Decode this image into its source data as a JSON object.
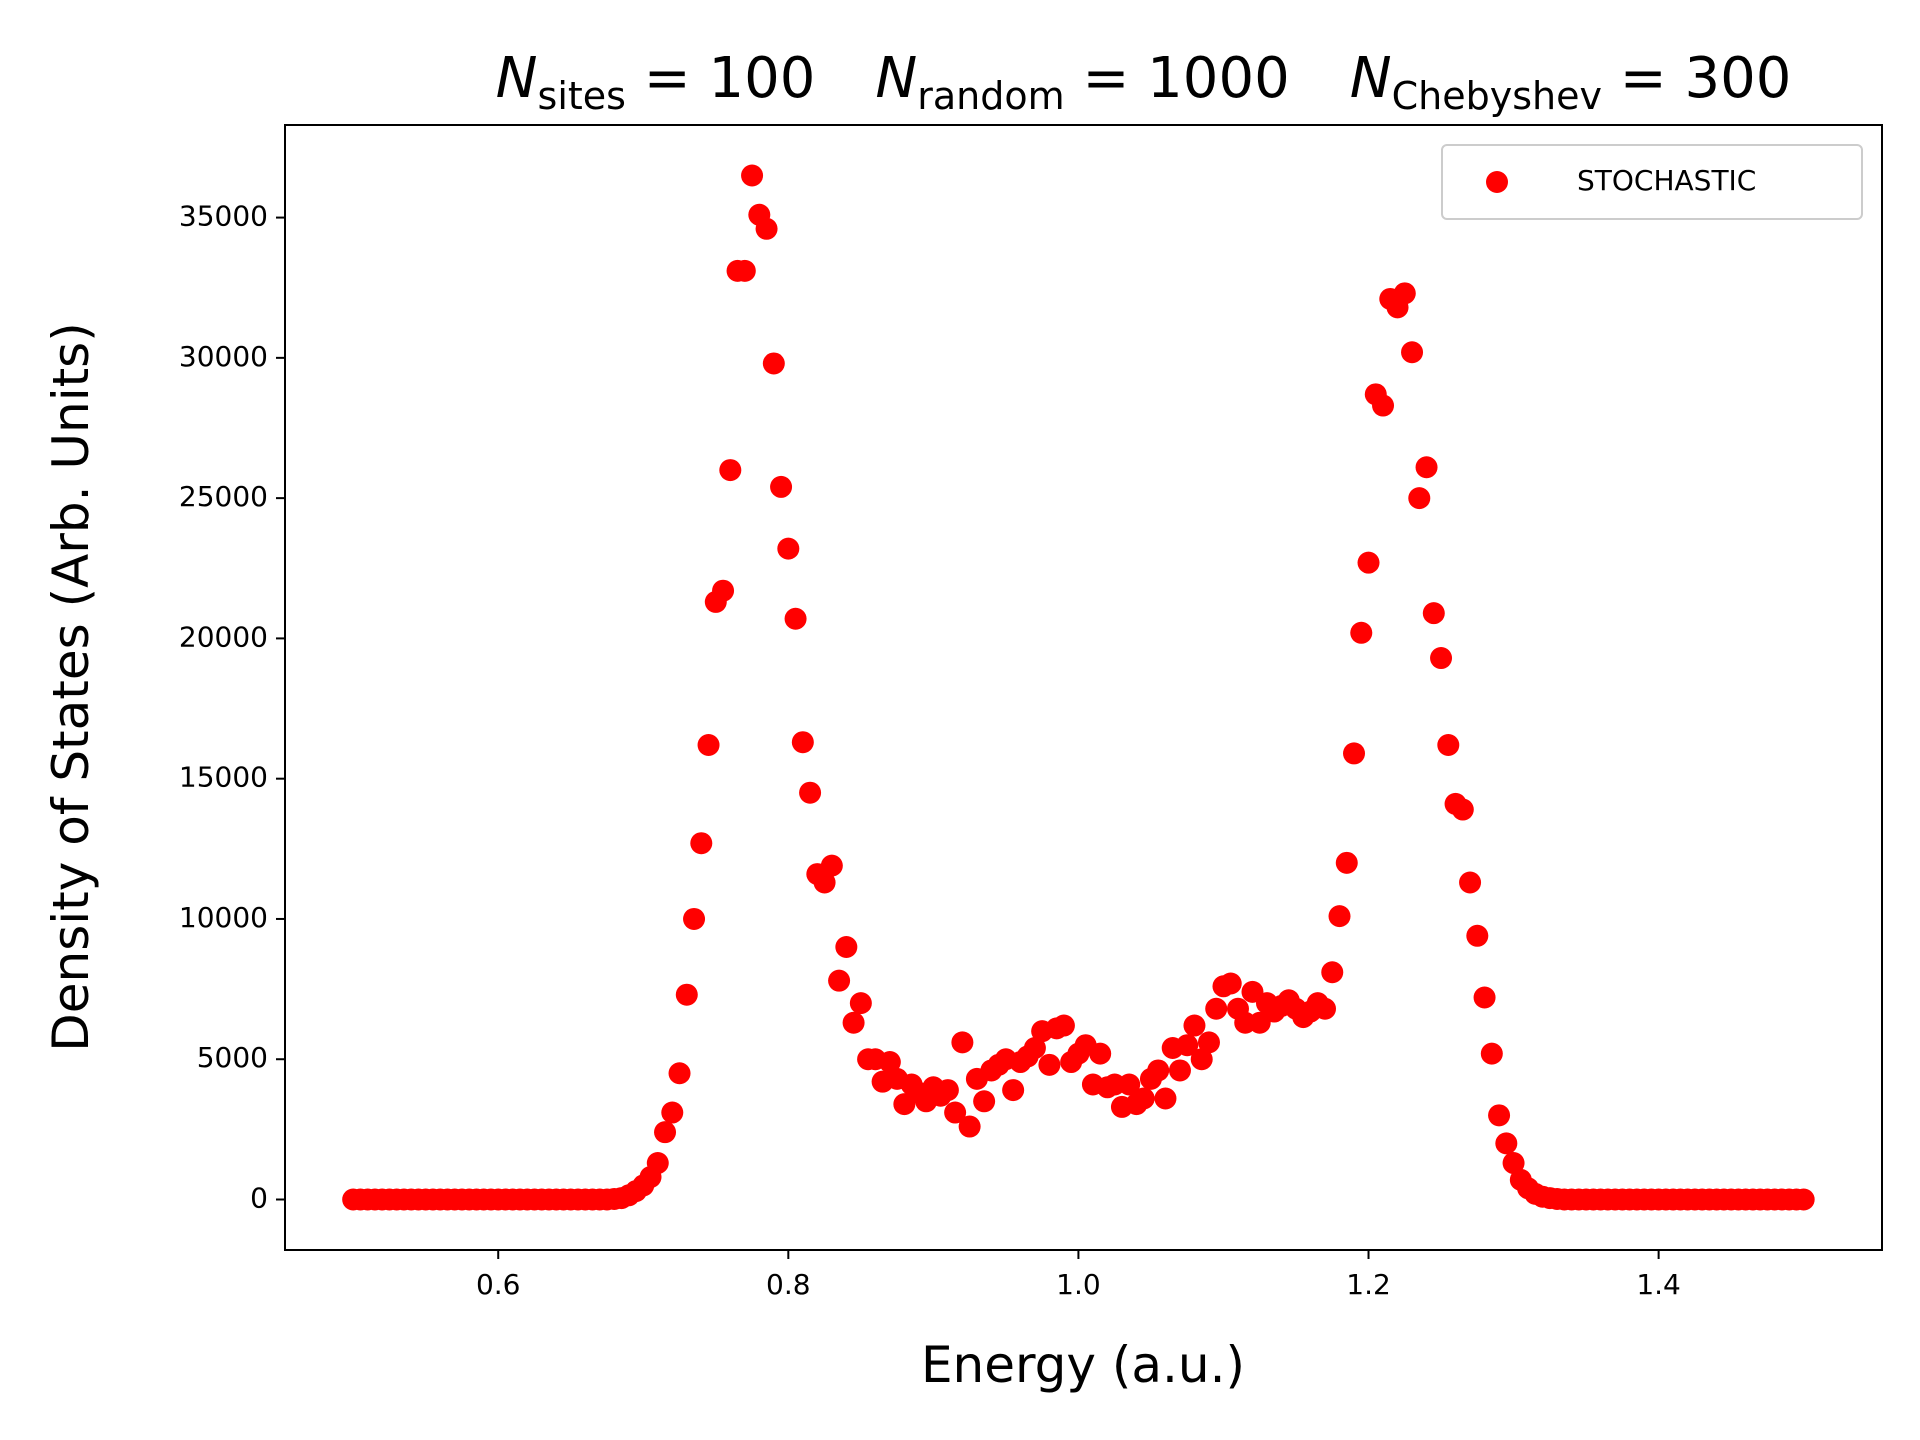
{
  "chart_data": {
    "type": "scatter",
    "title_parts": [
      {
        "base": "N",
        "sub": "sites",
        "rest": " = 100"
      },
      {
        "base": "N",
        "sub": "random",
        "rest": " = 1000"
      },
      {
        "base": "N",
        "sub": "Chebyshev",
        "rest": " = 300"
      }
    ],
    "x_label": "Energy (a.u.)",
    "y_label": "Density of States (Arb. Units)",
    "xlim": [
      0.453,
      1.554
    ],
    "ylim": [
      -1800,
      38300
    ],
    "xticks": [
      0.6,
      0.8,
      {
        "value": 1.0,
        "label": "1.0"
      },
      1.2,
      1.4
    ],
    "yticks": [
      0,
      5000,
      10000,
      15000,
      20000,
      25000,
      30000,
      35000
    ],
    "legend": "upper right",
    "grid": false,
    "series": [
      {
        "name": "STOCHASTIC",
        "color": "#ff0000",
        "x": [
          0.5,
          0.505,
          0.51,
          0.515,
          0.52,
          0.525,
          0.53,
          0.535,
          0.54,
          0.545,
          0.55,
          0.555,
          0.56,
          0.565,
          0.57,
          0.575,
          0.58,
          0.585,
          0.59,
          0.595,
          0.6,
          0.605,
          0.61,
          0.615,
          0.62,
          0.625,
          0.63,
          0.635,
          0.64,
          0.645,
          0.65,
          0.655,
          0.66,
          0.665,
          0.67,
          0.675,
          0.68,
          0.685,
          0.69,
          0.695,
          0.7,
          0.705,
          0.71,
          0.715,
          0.72,
          0.725,
          0.73,
          0.735,
          0.74,
          0.745,
          0.75,
          0.755,
          0.76,
          0.765,
          0.77,
          0.775,
          0.78,
          0.785,
          0.79,
          0.795,
          0.8,
          0.805,
          0.81,
          0.815,
          0.82,
          0.825,
          0.83,
          0.835,
          0.84,
          0.845,
          0.85,
          0.855,
          0.86,
          0.865,
          0.87,
          0.875,
          0.88,
          0.885,
          0.89,
          0.895,
          0.9,
          0.905,
          0.91,
          0.915,
          0.92,
          0.925,
          0.93,
          0.935,
          0.94,
          0.945,
          0.95,
          0.955,
          0.96,
          0.965,
          0.97,
          0.975,
          0.98,
          0.985,
          0.99,
          0.995,
          1.0,
          1.005,
          1.01,
          1.015,
          1.02,
          1.025,
          1.03,
          1.035,
          1.04,
          1.045,
          1.05,
          1.055,
          1.06,
          1.065,
          1.07,
          1.075,
          1.08,
          1.085,
          1.09,
          1.095,
          1.1,
          1.105,
          1.11,
          1.115,
          1.12,
          1.125,
          1.13,
          1.135,
          1.14,
          1.145,
          1.15,
          1.155,
          1.16,
          1.165,
          1.17,
          1.175,
          1.18,
          1.185,
          1.19,
          1.195,
          1.2,
          1.205,
          1.21,
          1.215,
          1.22,
          1.225,
          1.23,
          1.235,
          1.24,
          1.245,
          1.25,
          1.255,
          1.26,
          1.265,
          1.27,
          1.275,
          1.28,
          1.285,
          1.29,
          1.295,
          1.3,
          1.305,
          1.31,
          1.315,
          1.32,
          1.325,
          1.33,
          1.335,
          1.34,
          1.345,
          1.35,
          1.355,
          1.36,
          1.365,
          1.37,
          1.375,
          1.38,
          1.385,
          1.39,
          1.395,
          1.4,
          1.405,
          1.41,
          1.415,
          1.42,
          1.425,
          1.43,
          1.435,
          1.44,
          1.445,
          1.45,
          1.455,
          1.46,
          1.465,
          1.47,
          1.475,
          1.48,
          1.485,
          1.49,
          1.495,
          1.5
        ],
        "values": [
          0,
          0,
          0,
          0,
          0,
          0,
          0,
          0,
          0,
          0,
          0,
          0,
          0,
          0,
          0,
          0,
          0,
          0,
          0,
          0,
          0,
          0,
          0,
          0,
          0,
          0,
          0,
          0,
          0,
          0,
          0,
          0,
          0,
          0,
          0,
          0,
          20,
          50,
          150,
          300,
          500,
          800,
          1300,
          2400,
          3100,
          4500,
          7300,
          10000,
          12700,
          16200,
          21300,
          21700,
          26000,
          33100,
          33100,
          36500,
          35100,
          34600,
          29800,
          25400,
          23200,
          20700,
          16300,
          14500,
          11600,
          11300,
          11900,
          7800,
          9000,
          6300,
          7000,
          5000,
          5000,
          4200,
          4900,
          4300,
          3400,
          4100,
          3800,
          3500,
          4000,
          3700,
          3900,
          3100,
          5600,
          2600,
          4300,
          3500,
          4600,
          4800,
          5000,
          3900,
          4900,
          5100,
          5400,
          6000,
          4800,
          6100,
          6200,
          4900,
          5200,
          5500,
          4100,
          5200,
          4000,
          4100,
          3300,
          4100,
          3400,
          3600,
          4300,
          4600,
          3600,
          5400,
          4600,
          5500,
          6200,
          5000,
          5600,
          6800,
          7600,
          7700,
          6800,
          6300,
          7400,
          6300,
          7000,
          6700,
          6900,
          7100,
          6800,
          6500,
          6700,
          7000,
          6800,
          8100,
          10100,
          12000,
          15900,
          20200,
          22700,
          28700,
          28300,
          32100,
          31800,
          32300,
          30200,
          25000,
          26100,
          20900,
          19300,
          16200,
          14100,
          13900,
          11300,
          9400,
          7200,
          5200,
          3000,
          2000,
          1300,
          700,
          400,
          200,
          100,
          50,
          20,
          0,
          0,
          0,
          0,
          0,
          0,
          0,
          0,
          0,
          0,
          0,
          0,
          0,
          0,
          0,
          0,
          0,
          0,
          0,
          0,
          0,
          0,
          0,
          0,
          0,
          0,
          0,
          0,
          0,
          0,
          0,
          0,
          0,
          0
        ]
      }
    ]
  }
}
